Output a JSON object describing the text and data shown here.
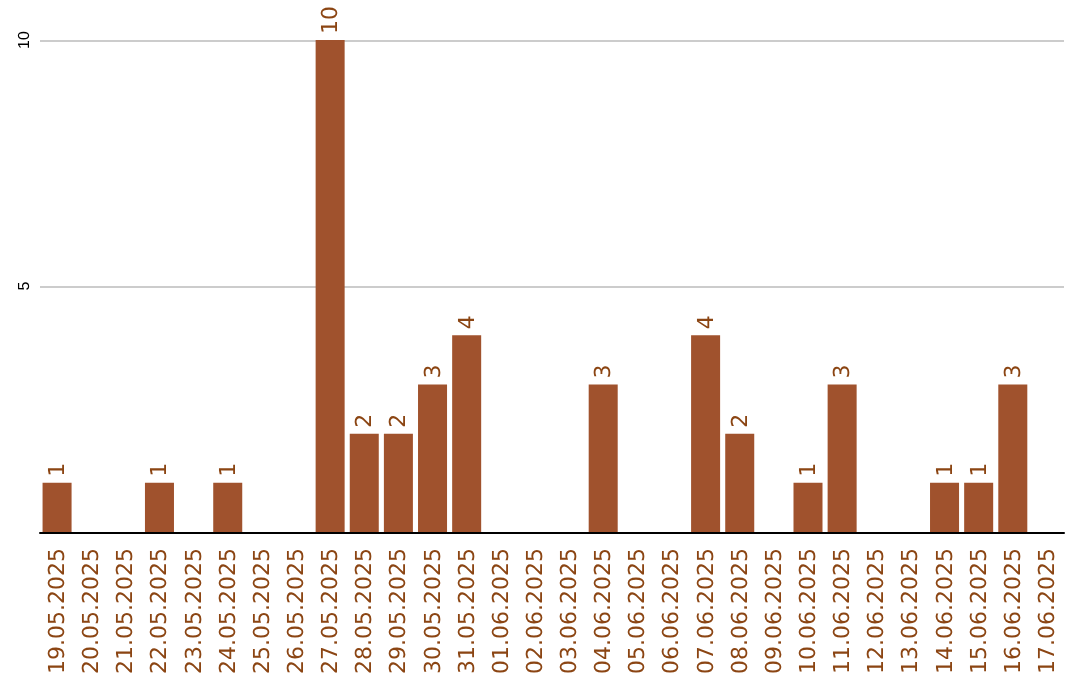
{
  "chart_data": {
    "type": "bar",
    "categories": [
      "19.05.2025",
      "20.05.2025",
      "21.05.2025",
      "22.05.2025",
      "23.05.2025",
      "24.05.2025",
      "25.05.2025",
      "26.05.2025",
      "27.05.2025",
      "28.05.2025",
      "29.05.2025",
      "30.05.2025",
      "31.05.2025",
      "01.06.2025",
      "02.06.2025",
      "03.06.2025",
      "04.06.2025",
      "05.06.2025",
      "06.06.2025",
      "07.06.2025",
      "08.06.2025",
      "09.06.2025",
      "10.06.2025",
      "11.06.2025",
      "12.06.2025",
      "13.06.2025",
      "14.06.2025",
      "15.06.2025",
      "16.06.2025",
      "17.06.2025"
    ],
    "values": [
      1,
      null,
      null,
      1,
      null,
      1,
      null,
      null,
      10,
      2,
      2,
      3,
      4,
      null,
      null,
      null,
      3,
      null,
      null,
      4,
      2,
      null,
      1,
      3,
      null,
      null,
      1,
      1,
      3,
      null
    ],
    "color": "#a0522d",
    "ylim": [
      0,
      10
    ],
    "yticks": [
      {
        "value": 0,
        "label": null
      },
      5,
      10
    ],
    "grid": "y",
    "data_labels": true
  }
}
